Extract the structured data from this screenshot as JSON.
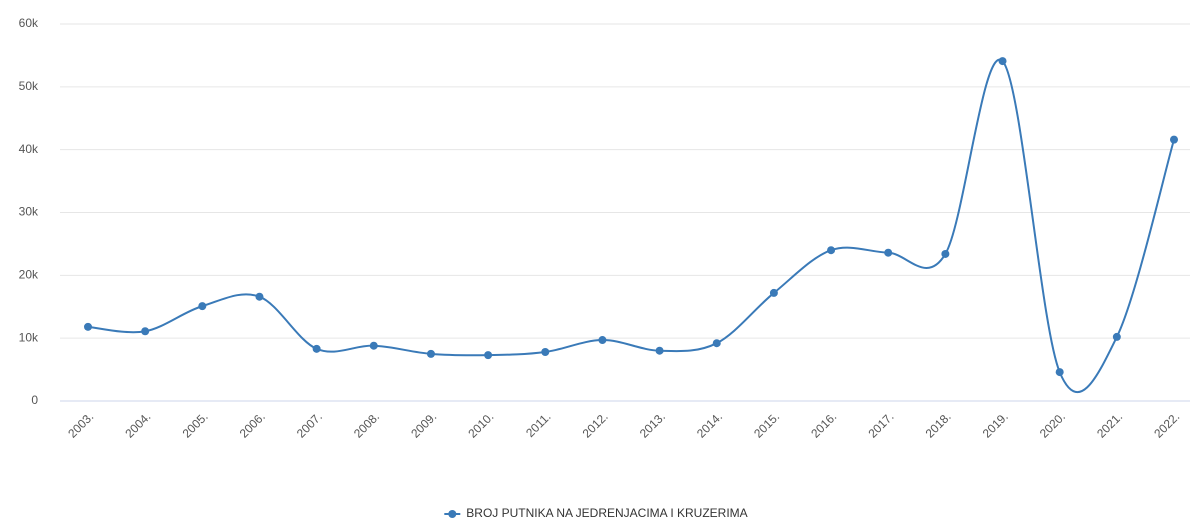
{
  "chart_data": {
    "type": "line",
    "categories": [
      "2003.",
      "2004.",
      "2005.",
      "2006.",
      "2007.",
      "2008.",
      "2009.",
      "2010.",
      "2011.",
      "2012.",
      "2013.",
      "2014.",
      "2015.",
      "2016.",
      "2017.",
      "2018.",
      "2019.",
      "2020.",
      "2021.",
      "2022."
    ],
    "series": [
      {
        "name": "BROJ PUTNIKA NA JEDRENJACIMA I KRUZERIMA",
        "color": "#3a7ab8",
        "values": [
          11800,
          11100,
          15100,
          16600,
          8300,
          8800,
          7500,
          7300,
          7800,
          9700,
          8000,
          9200,
          17200,
          24000,
          23600,
          23400,
          54100,
          4600,
          10200,
          41600
        ]
      }
    ],
    "ylim": [
      0,
      60000
    ],
    "yticks": [
      0,
      {
        "value": 10000,
        "label": "10k"
      },
      {
        "value": 20000,
        "label": "20k"
      },
      {
        "value": 30000,
        "label": "30k"
      },
      {
        "value": 40000,
        "label": "40k"
      },
      {
        "value": 50000,
        "label": "50k"
      },
      {
        "value": 60000,
        "label": "60k"
      }
    ],
    "grid": true,
    "legend": "bottom"
  }
}
